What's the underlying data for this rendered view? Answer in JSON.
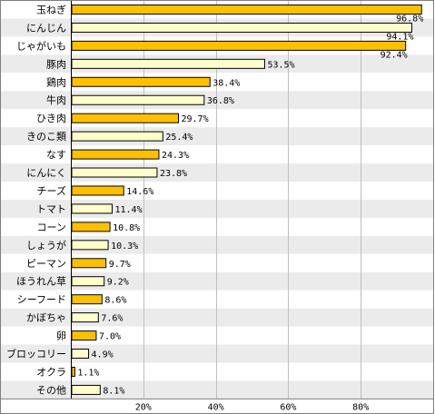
{
  "chart_data": {
    "type": "bar",
    "orientation": "horizontal",
    "categories": [
      "玉ねぎ",
      "にんじん",
      "じゃがいも",
      "豚肉",
      "鶏肉",
      "牛肉",
      "ひき肉",
      "きのこ類",
      "なす",
      "にんにく",
      "チーズ",
      "トマト",
      "コーン",
      "しょうが",
      "ピーマン",
      "ほうれん草",
      "シーフード",
      "かぼちゃ",
      "卵",
      "ブロッコリー",
      "オクラ",
      "その他"
    ],
    "values": [
      96.8,
      94.1,
      92.4,
      53.5,
      38.4,
      36.8,
      29.7,
      25.4,
      24.3,
      23.8,
      14.6,
      11.4,
      10.8,
      10.3,
      9.7,
      9.2,
      8.6,
      7.6,
      7.0,
      4.9,
      1.1,
      8.1
    ],
    "value_labels": [
      "96.8%",
      "94.1%",
      "92.4%",
      "53.5%",
      "38.4%",
      "36.8%",
      "29.7%",
      "25.4%",
      "24.3%",
      "23.8%",
      "14.6%",
      "11.4%",
      "10.8%",
      "10.3%",
      "9.7%",
      "9.2%",
      "8.6%",
      "7.6%",
      "7.0%",
      "4.9%",
      "1.1%",
      "8.1%"
    ],
    "bar_colors": [
      "#FFC000",
      "#FFFFCC",
      "#FFC000",
      "#FFFFCC",
      "#FFC000",
      "#FFFFCC",
      "#FFC000",
      "#FFFFCC",
      "#FFC000",
      "#FFFFCC",
      "#FFC000",
      "#FFFFCC",
      "#FFC000",
      "#FFFFCC",
      "#FFC000",
      "#FFFFCC",
      "#FFC000",
      "#FFFFCC",
      "#FFC000",
      "#FFFFCC",
      "#FFC000",
      "#FFFFCC"
    ],
    "band_colors": [
      "#FFFFFF",
      "#EBEBEB"
    ],
    "bar_border_color": "#000000",
    "grid_color": "#BFBFBF",
    "xlim": [
      0,
      100
    ],
    "xticks": [
      20,
      40,
      60,
      80
    ],
    "xtick_labels": [
      "20%",
      "40%",
      "60%",
      "80%"
    ],
    "grid": true,
    "title": "",
    "xlabel": "",
    "ylabel": ""
  }
}
